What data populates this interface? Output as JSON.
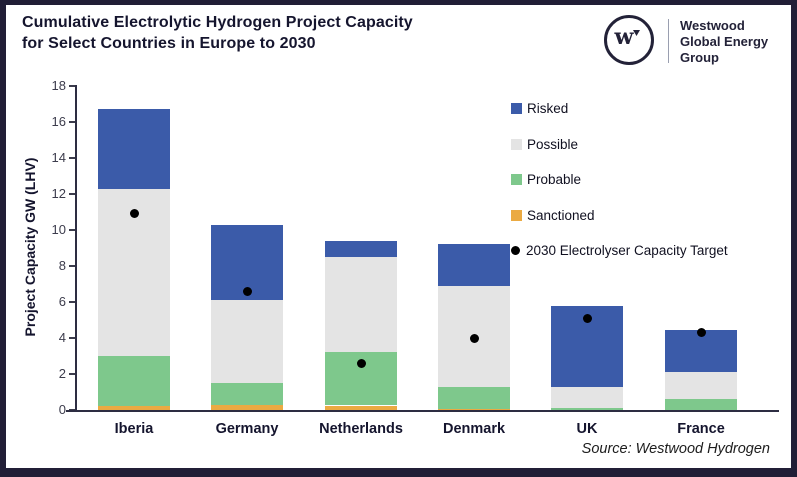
{
  "frame_color": "#211E36",
  "header": {
    "title_line1": "Cumulative Electrolytic Hydrogen Project Capacity",
    "title_line2": "for Select Countries in Europe to 2030",
    "logo": {
      "mark": "w",
      "name_line1": "Westwood",
      "name_line2": "Global Energy",
      "name_line3": "Group"
    }
  },
  "source_note": "Source: Westwood Hydrogen",
  "chart_data": {
    "type": "bar",
    "stacked": true,
    "title": "Cumulative Electrolytic Hydrogen Project Capacity for Select Countries in Europe to 2030",
    "xlabel": "",
    "ylabel": "Project Capacity GW (LHV)",
    "ylim": [
      0,
      18
    ],
    "ytick_step": 2,
    "grid": false,
    "legend_position": "upper right",
    "categories": [
      "Iberia",
      "Germany",
      "Netherlands",
      "Denmark",
      "UK",
      "France"
    ],
    "series": [
      {
        "name": "Sanctioned",
        "color": "#EBAA42",
        "values": [
          0.25,
          0.3,
          0.25,
          0.05,
          0,
          0
        ]
      },
      {
        "name": "Probable",
        "color": "#7EC88C",
        "values": [
          2.75,
          1.2,
          2.95,
          1.25,
          0.1,
          0.6
        ]
      },
      {
        "name": "Possible",
        "color": "#E4E4E4",
        "values": [
          9.3,
          4.6,
          5.3,
          5.6,
          1.2,
          1.5
        ]
      },
      {
        "name": "Risked",
        "color": "#3B5BA9",
        "values": [
          4.4,
          4.2,
          0.9,
          2.3,
          4.5,
          2.35
        ]
      }
    ],
    "totals": [
      16.7,
      10.3,
      9.4,
      9.2,
      5.8,
      4.45
    ],
    "point_series": {
      "name": "2030 Electrolyser Capacity Target",
      "color": "#000000",
      "values": [
        10.9,
        6.6,
        2.6,
        4.0,
        5.1,
        4.3
      ]
    },
    "legend": [
      "Risked",
      "Possible",
      "Probable",
      "Sanctioned",
      "2030 Electrolyser Capacity Target"
    ]
  }
}
